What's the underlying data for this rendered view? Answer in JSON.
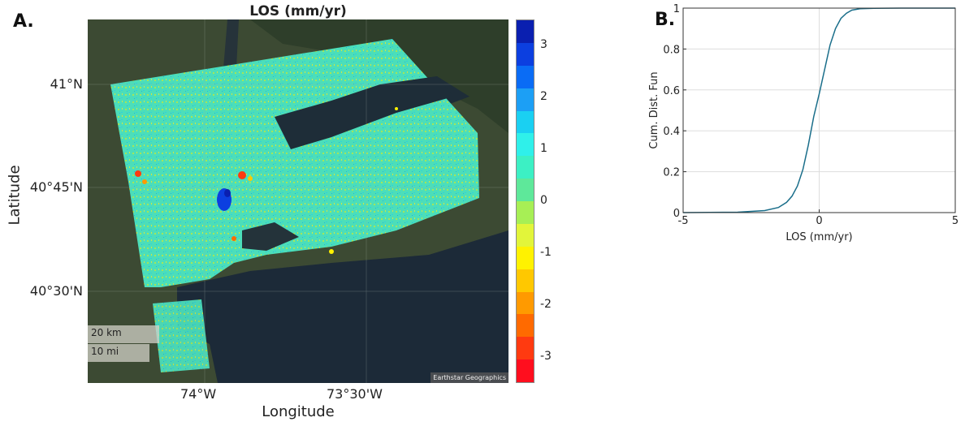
{
  "figure": {
    "panel_a_label": "A.",
    "panel_b_label": "B."
  },
  "map": {
    "title": "LOS (mm/yr)",
    "xlabel": "Longitude",
    "ylabel": "Latitude",
    "lat_ticks": [
      "41°N",
      "40°45'N",
      "40°30'N"
    ],
    "lon_ticks": [
      "74°W",
      "73°30'W"
    ],
    "scalebar_km": "20 km",
    "scalebar_mi": "10 mi",
    "attribution": "Earthstar Geographics",
    "colorbar_ticks": [
      "3",
      "2",
      "1",
      "0",
      "-1",
      "-2",
      "-3"
    ],
    "colorbar_colors": [
      "#0a1fb0",
      "#0c3fe0",
      "#0a6cf5",
      "#1c9ff5",
      "#1ad0f2",
      "#2ff0ea",
      "#3cf0c4",
      "#5ee89a",
      "#a7ef55",
      "#e2f53a",
      "#fff200",
      "#ffc800",
      "#ff9a00",
      "#ff6a00",
      "#ff3a10",
      "#ff0e1e"
    ]
  },
  "chart_data": {
    "type": "line",
    "title": "",
    "xlabel": "LOS (mm/yr)",
    "ylabel": "Cum. Dist. Fun",
    "xlim": [
      -5,
      5
    ],
    "ylim": [
      0,
      1
    ],
    "x_ticks": [
      -5,
      0,
      5
    ],
    "y_ticks": [
      0,
      0.2,
      0.4,
      0.6,
      0.8,
      1
    ],
    "y_tick_labels": [
      "0",
      "0.2",
      "0.4",
      "0.6",
      "0.8",
      "1"
    ],
    "grid": true,
    "line_color": "#1a6e8a",
    "series": [
      {
        "x": [
          -5,
          -3,
          -2,
          -1.5,
          -1.2,
          -1,
          -0.8,
          -0.6,
          -0.4,
          -0.2,
          0,
          0.2,
          0.4,
          0.6,
          0.8,
          1,
          1.2,
          1.5,
          2,
          3,
          5
        ],
        "y": [
          0,
          0.002,
          0.01,
          0.025,
          0.05,
          0.08,
          0.13,
          0.21,
          0.33,
          0.47,
          0.58,
          0.7,
          0.82,
          0.9,
          0.95,
          0.975,
          0.99,
          0.997,
          0.999,
          1,
          1
        ]
      }
    ]
  }
}
